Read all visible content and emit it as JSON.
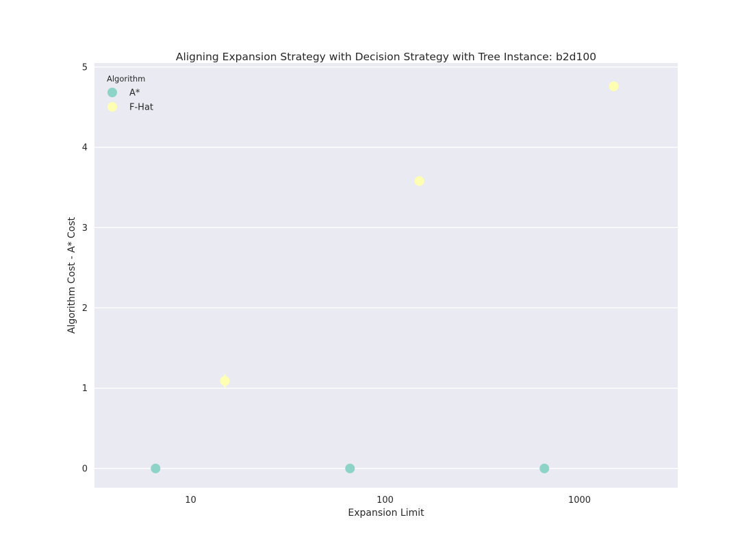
{
  "chart_data": {
    "type": "scatter",
    "title": "Aligning Expansion Strategy with Decision Strategy with Tree Instance: b2d100",
    "xlabel": "Expansion Limit",
    "ylabel": "Algorithm Cost - A* Cost",
    "x_scale": "log",
    "xlim": [
      3.2,
      3200
    ],
    "ylim": [
      -0.24,
      5.05
    ],
    "x_ticks": [
      10,
      100,
      1000
    ],
    "x_tick_labels": [
      "10",
      "100",
      "1000"
    ],
    "y_ticks": [
      0,
      1,
      2,
      3,
      4,
      5
    ],
    "y_tick_labels": [
      "0",
      "1",
      "2",
      "3",
      "4",
      "5"
    ],
    "grid": true,
    "legend": {
      "title": "Algorithm",
      "placement": "top-left"
    },
    "series": [
      {
        "name": "A*",
        "color": "#8dd3c7",
        "x": [
          6.6,
          66,
          660
        ],
        "y": [
          0,
          0,
          0
        ],
        "y_err": [
          0,
          0,
          0
        ]
      },
      {
        "name": "F-Hat",
        "color": "#ffffb3",
        "x": [
          15,
          150,
          1500
        ],
        "y": [
          1.09,
          3.58,
          4.76
        ],
        "y_err": [
          0.07,
          0.05,
          0.05
        ]
      }
    ]
  }
}
